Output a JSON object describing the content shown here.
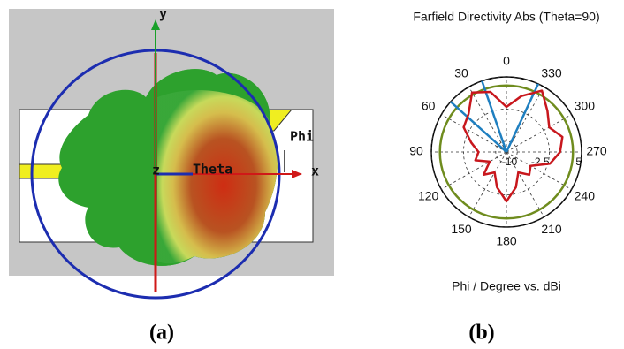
{
  "panel_a": {
    "y_label": "y",
    "x_label": "x",
    "z_label": "z",
    "theta_label": "Theta",
    "phi_label": "Phi"
  },
  "captions": [
    "(a)",
    "(b)"
  ],
  "chart_data": {
    "type": "polar",
    "title": "Farfield Directivity Abs (Theta=90)",
    "xlabel": "Phi / Degree vs. dBi",
    "angle_ticks": [
      0,
      30,
      60,
      90,
      120,
      150,
      180,
      210,
      240,
      270,
      300,
      330
    ],
    "rlim": [
      -12.5,
      5
    ],
    "rticks": [
      -10,
      -2.5,
      5
    ],
    "x": [
      0,
      15,
      30,
      45,
      60,
      75,
      90,
      105,
      120,
      135,
      150,
      165,
      180,
      195,
      210,
      225,
      240,
      255,
      270,
      285,
      300,
      315,
      330,
      345
    ],
    "series": [
      {
        "color": "#c8171d",
        "values": [
          -2,
          2,
          3.5,
          0,
          -1,
          -4,
          -6,
          -5,
          -8,
          -5,
          -7,
          -4,
          -1,
          -4,
          -7,
          -5,
          -6,
          -2,
          0,
          1,
          -1,
          1,
          4,
          1
        ]
      }
    ],
    "reference_ring": {
      "color": "#6f8c1e",
      "value": 3
    },
    "beam_lines": {
      "color": "#1f7fc0",
      "angles": [
        19,
        48,
        335
      ]
    }
  }
}
